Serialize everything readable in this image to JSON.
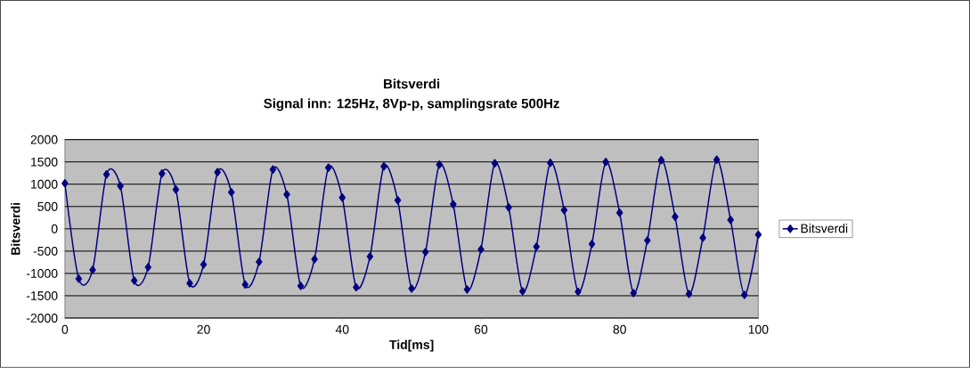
{
  "chart_data": {
    "type": "line",
    "title": "Bitsverdi",
    "subtitle": "Signal inn: 125Hz, 8Vp-p, samplingsrate 500Hz",
    "xlabel": "Tid[ms]",
    "ylabel": "Bitsverdi",
    "x": [
      0,
      2,
      4,
      6,
      8,
      10,
      12,
      14,
      16,
      18,
      20,
      22,
      24,
      26,
      28,
      30,
      32,
      34,
      36,
      38,
      40,
      42,
      44,
      46,
      48,
      50,
      52,
      54,
      56,
      58,
      60,
      62,
      64,
      66,
      68,
      70,
      72,
      74,
      76,
      78,
      80,
      82,
      84,
      86,
      88,
      90,
      92,
      94,
      96,
      98,
      100
    ],
    "series": [
      {
        "name": "Bitsverdi",
        "color": "#000080",
        "values": [
          1020,
          -1120,
          -920,
          1220,
          960,
          -1160,
          -860,
          1240,
          880,
          -1220,
          -800,
          1270,
          820,
          -1250,
          -740,
          1330,
          770,
          -1280,
          -680,
          1370,
          700,
          -1310,
          -620,
          1400,
          640,
          -1340,
          -520,
          1440,
          550,
          -1360,
          -460,
          1470,
          480,
          -1400,
          -400,
          1480,
          420,
          -1410,
          -340,
          1500,
          360,
          -1440,
          -260,
          1540,
          270,
          -1460,
          -200,
          1550,
          200,
          -1480,
          -130
        ]
      }
    ],
    "xlim": [
      0,
      100
    ],
    "xticks": [
      0,
      20,
      40,
      60,
      80,
      100
    ],
    "ylim": [
      -2000,
      2000
    ],
    "yticks": [
      -2000,
      -1500,
      -1000,
      -500,
      0,
      500,
      1000,
      1500,
      2000
    ],
    "grid": "y",
    "legend": "right",
    "marker": "diamond",
    "line_style": "solid"
  }
}
